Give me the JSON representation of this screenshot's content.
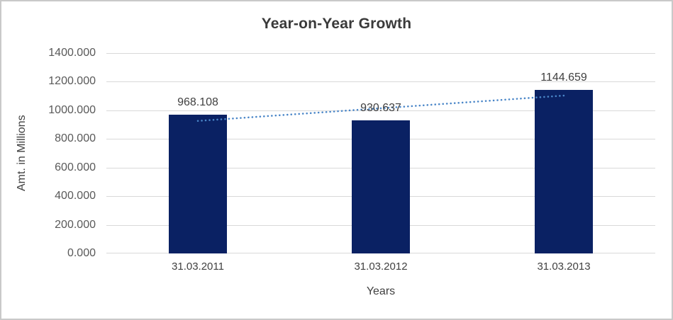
{
  "chart_data": {
    "type": "bar",
    "title": "Year-on-Year Growth",
    "xlabel": "Years",
    "ylabel": "Amt. in Millions",
    "categories": [
      "31.03.2011",
      "31.03.2012",
      "31.03.2013"
    ],
    "values": [
      968.108,
      930.637,
      1144.659
    ],
    "value_labels": [
      "968.108",
      "930.637",
      "1144.659"
    ],
    "ylim": [
      0,
      1400
    ],
    "ytick_step": 200,
    "ytick_labels": [
      "0.000",
      "200.000",
      "400.000",
      "600.000",
      "800.000",
      "1000.000",
      "1200.000",
      "1400.000"
    ],
    "grid": true,
    "legend": "none",
    "bar_color": "#0a2163",
    "gridline_color": "#d9d9d9",
    "border_color": "#c9c9c9",
    "label_color": "#404040",
    "trendline": {
      "type": "linear",
      "style": "dotted",
      "color": "#4a86c8",
      "start_value": 926,
      "end_value": 1103
    }
  }
}
